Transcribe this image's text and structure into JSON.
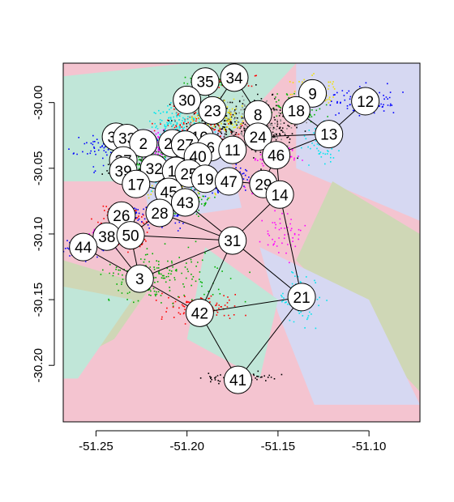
{
  "chart_data": {
    "type": "scatter",
    "title": "",
    "xlabel": "",
    "ylabel": "",
    "xlim": [
      -51.268,
      -51.072
    ],
    "ylim": [
      -30.243,
      -29.97
    ],
    "x_ticks": [
      -51.25,
      -51.2,
      -51.15,
      -51.1
    ],
    "x_tick_labels": [
      "-51.25",
      "-51.20",
      "-51.15",
      "-51.10"
    ],
    "y_ticks": [
      -30.0,
      -30.05,
      -30.1,
      -30.15,
      -30.2
    ],
    "y_tick_labels": [
      "-30.00",
      "-30.05",
      "-30.10",
      "-30.15",
      "-30.20"
    ],
    "grid": false,
    "legend": "none",
    "region_colors": [
      "#f4c4d0",
      "#c0e6d8",
      "#d6d8f2",
      "#cfd7b6"
    ],
    "regions": [
      {
        "color": "#c0e6d8",
        "points": [
          [
            -51.268,
            -29.98
          ],
          [
            -51.2,
            -29.97
          ],
          [
            -51.14,
            -29.97
          ],
          [
            -51.2,
            -30.06
          ],
          [
            -51.268,
            -30.06
          ]
        ]
      },
      {
        "color": "#d6d8f2",
        "points": [
          [
            -51.14,
            -29.97
          ],
          [
            -51.072,
            -29.97
          ],
          [
            -51.072,
            -30.09
          ],
          [
            -51.14,
            -30.05
          ]
        ]
      },
      {
        "color": "#cfd7b6",
        "points": [
          [
            -51.12,
            -30.06
          ],
          [
            -51.072,
            -30.1
          ],
          [
            -51.072,
            -30.22
          ],
          [
            -51.14,
            -30.12
          ]
        ]
      },
      {
        "color": "#d6d8f2",
        "points": [
          [
            -51.16,
            -30.11
          ],
          [
            -51.1,
            -30.15
          ],
          [
            -51.072,
            -30.23
          ],
          [
            -51.13,
            -30.23
          ],
          [
            -51.15,
            -30.16
          ]
        ]
      },
      {
        "color": "#c0e6d8",
        "points": [
          [
            -51.19,
            -30.11
          ],
          [
            -51.15,
            -30.15
          ],
          [
            -51.16,
            -30.21
          ],
          [
            -51.2,
            -30.18
          ]
        ]
      },
      {
        "color": "#cfd7b6",
        "points": [
          [
            -51.268,
            -30.12
          ],
          [
            -51.22,
            -30.14
          ],
          [
            -51.24,
            -30.18
          ],
          [
            -51.268,
            -30.2
          ]
        ]
      },
      {
        "color": "#c0e6d8",
        "points": [
          [
            -51.268,
            -30.14
          ],
          [
            -51.23,
            -30.15
          ],
          [
            -51.26,
            -30.21
          ],
          [
            -51.268,
            -30.21
          ]
        ]
      },
      {
        "color": "#d6d8f2",
        "points": [
          [
            -51.23,
            -30.02
          ],
          [
            -51.18,
            -30.02
          ],
          [
            -51.17,
            -30.08
          ],
          [
            -51.22,
            -30.09
          ]
        ]
      }
    ],
    "nodes": [
      {
        "id": "34",
        "x": -51.174,
        "y": -29.981
      },
      {
        "id": "35",
        "x": -51.19,
        "y": -29.984
      },
      {
        "id": "9",
        "x": -51.131,
        "y": -29.993
      },
      {
        "id": "12",
        "x": -51.102,
        "y": -29.999
      },
      {
        "id": "30",
        "x": -51.2,
        "y": -29.998
      },
      {
        "id": "18",
        "x": -51.14,
        "y": -30.006
      },
      {
        "id": "8",
        "x": -51.161,
        "y": -30.009
      },
      {
        "id": "23",
        "x": -51.186,
        "y": -30.006
      },
      {
        "id": "13",
        "x": -51.122,
        "y": -30.024
      },
      {
        "id": "24",
        "x": -51.161,
        "y": -30.026
      },
      {
        "id": "10",
        "x": -51.193,
        "y": -30.026
      },
      {
        "id": "36",
        "x": -51.239,
        "y": -30.026
      },
      {
        "id": "33",
        "x": -51.233,
        "y": -30.027
      },
      {
        "id": "2",
        "x": -51.224,
        "y": -30.031
      },
      {
        "id": "20",
        "x": -51.208,
        "y": -30.031
      },
      {
        "id": "27",
        "x": -51.201,
        "y": -30.032
      },
      {
        "id": "6",
        "x": -51.187,
        "y": -30.034
      },
      {
        "id": "11",
        "x": -51.175,
        "y": -30.036
      },
      {
        "id": "46",
        "x": -51.151,
        "y": -30.04
      },
      {
        "id": "40",
        "x": -51.194,
        "y": -30.041
      },
      {
        "id": "37",
        "x": -51.235,
        "y": -30.044
      },
      {
        "id": "39",
        "x": -51.235,
        "y": -30.052
      },
      {
        "id": "32",
        "x": -51.218,
        "y": -30.05
      },
      {
        "id": "15",
        "x": -51.206,
        "y": -30.052
      },
      {
        "id": "25",
        "x": -51.199,
        "y": -30.054
      },
      {
        "id": "19",
        "x": -51.19,
        "y": -30.058
      },
      {
        "id": "47",
        "x": -51.177,
        "y": -30.06
      },
      {
        "id": "29",
        "x": -51.158,
        "y": -30.062
      },
      {
        "id": "17",
        "x": -51.228,
        "y": -30.062
      },
      {
        "id": "45",
        "x": -51.21,
        "y": -30.068
      },
      {
        "id": "14",
        "x": -51.149,
        "y": -30.07
      },
      {
        "id": "43",
        "x": -51.201,
        "y": -30.076
      },
      {
        "id": "26",
        "x": -51.236,
        "y": -30.086
      },
      {
        "id": "28",
        "x": -51.215,
        "y": -30.084
      },
      {
        "id": "38",
        "x": -51.244,
        "y": -30.102
      },
      {
        "id": "50",
        "x": -51.231,
        "y": -30.101
      },
      {
        "id": "44",
        "x": -51.257,
        "y": -30.11
      },
      {
        "id": "31",
        "x": -51.175,
        "y": -30.105
      },
      {
        "id": "3",
        "x": -51.226,
        "y": -30.134
      },
      {
        "id": "21",
        "x": -51.137,
        "y": -30.148
      },
      {
        "id": "42",
        "x": -51.193,
        "y": -30.16
      },
      {
        "id": "41",
        "x": -51.172,
        "y": -30.211
      }
    ],
    "edges": [
      [
        "34",
        "8"
      ],
      [
        "34",
        "23"
      ],
      [
        "35",
        "23"
      ],
      [
        "9",
        "18"
      ],
      [
        "12",
        "13"
      ],
      [
        "18",
        "13"
      ],
      [
        "13",
        "24"
      ],
      [
        "8",
        "24"
      ],
      [
        "24",
        "46"
      ],
      [
        "13",
        "46"
      ],
      [
        "46",
        "29"
      ],
      [
        "46",
        "14"
      ],
      [
        "29",
        "14"
      ],
      [
        "47",
        "29"
      ],
      [
        "14",
        "31"
      ],
      [
        "14",
        "21"
      ],
      [
        "31",
        "21"
      ],
      [
        "31",
        "42"
      ],
      [
        "31",
        "3"
      ],
      [
        "31",
        "50"
      ],
      [
        "31",
        "28"
      ],
      [
        "31",
        "43"
      ],
      [
        "3",
        "42"
      ],
      [
        "3",
        "50"
      ],
      [
        "3",
        "38"
      ],
      [
        "3",
        "44"
      ],
      [
        "44",
        "38"
      ],
      [
        "26",
        "38"
      ],
      [
        "26",
        "50"
      ],
      [
        "50",
        "28"
      ],
      [
        "42",
        "21"
      ],
      [
        "42",
        "41"
      ],
      [
        "41",
        "21"
      ],
      [
        "43",
        "28"
      ],
      [
        "43",
        "45"
      ],
      [
        "19",
        "47"
      ],
      [
        "17",
        "45"
      ]
    ],
    "clusters": [
      {
        "color": "#ff0000",
        "x": -51.193,
        "y": -30.023,
        "sx": 0.01,
        "sy": 0.008,
        "n": 220
      },
      {
        "color": "#00e5ee",
        "x": -51.205,
        "y": -30.018,
        "sx": 0.008,
        "sy": 0.008,
        "n": 180
      },
      {
        "color": "#0000ff",
        "x": -51.233,
        "y": -30.031,
        "sx": 0.008,
        "sy": 0.004,
        "n": 160
      },
      {
        "color": "#ff00ff",
        "x": -51.214,
        "y": -30.032,
        "sx": 0.006,
        "sy": 0.006,
        "n": 140
      },
      {
        "color": "#00b000",
        "x": -51.22,
        "y": -30.043,
        "sx": 0.01,
        "sy": 0.006,
        "n": 150
      },
      {
        "color": "#000000",
        "x": -51.175,
        "y": -30.018,
        "sx": 0.014,
        "sy": 0.01,
        "n": 260
      },
      {
        "color": "#888888",
        "x": -51.162,
        "y": -30.015,
        "sx": 0.01,
        "sy": 0.01,
        "n": 180
      },
      {
        "color": "#f0e000",
        "x": -51.183,
        "y": -30.01,
        "sx": 0.008,
        "sy": 0.006,
        "n": 130
      },
      {
        "color": "#f0e000",
        "x": -51.131,
        "y": -29.99,
        "sx": 0.006,
        "sy": 0.005,
        "n": 110
      },
      {
        "color": "#00b000",
        "x": -51.141,
        "y": -30.004,
        "sx": 0.006,
        "sy": 0.005,
        "n": 120
      },
      {
        "color": "#0000ff",
        "x": -51.103,
        "y": -29.998,
        "sx": 0.008,
        "sy": 0.005,
        "n": 120
      },
      {
        "color": "#ff00ff",
        "x": -51.151,
        "y": -30.04,
        "sx": 0.006,
        "sy": 0.004,
        "n": 80
      },
      {
        "color": "#0000ff",
        "x": -51.179,
        "y": -30.058,
        "sx": 0.01,
        "sy": 0.005,
        "n": 120
      },
      {
        "color": "#ff00ff",
        "x": -51.157,
        "y": -30.064,
        "sx": 0.006,
        "sy": 0.004,
        "n": 60
      },
      {
        "color": "#00b000",
        "x": -51.2,
        "y": -30.075,
        "sx": 0.007,
        "sy": 0.004,
        "n": 90
      },
      {
        "color": "#f0e000",
        "x": -51.204,
        "y": -30.066,
        "sx": 0.008,
        "sy": 0.004,
        "n": 80
      },
      {
        "color": "#00e5ee",
        "x": -51.21,
        "y": -30.056,
        "sx": 0.008,
        "sy": 0.005,
        "n": 100
      },
      {
        "color": "#000000",
        "x": -51.232,
        "y": -30.049,
        "sx": 0.006,
        "sy": 0.004,
        "n": 90
      },
      {
        "color": "#ff0000",
        "x": -51.237,
        "y": -30.086,
        "sx": 0.006,
        "sy": 0.004,
        "n": 90
      },
      {
        "color": "#0000ff",
        "x": -51.218,
        "y": -30.085,
        "sx": 0.01,
        "sy": 0.005,
        "n": 100
      },
      {
        "color": "#ff00ff",
        "x": -51.244,
        "y": -30.102,
        "sx": 0.005,
        "sy": 0.004,
        "n": 90
      },
      {
        "color": "#ff0000",
        "x": -51.232,
        "y": -30.101,
        "sx": 0.006,
        "sy": 0.005,
        "n": 110
      },
      {
        "color": "#0000ff",
        "x": -51.257,
        "y": -30.11,
        "sx": 0.006,
        "sy": 0.004,
        "n": 90
      },
      {
        "color": "#00b000",
        "x": -51.225,
        "y": -30.133,
        "sx": 0.01,
        "sy": 0.01,
        "n": 110
      },
      {
        "color": "#ff0000",
        "x": -51.192,
        "y": -30.156,
        "sx": 0.01,
        "sy": 0.005,
        "n": 110
      },
      {
        "color": "#000000",
        "x": -51.171,
        "y": -30.209,
        "sx": 0.01,
        "sy": 0.002,
        "n": 80
      },
      {
        "color": "#00e5ee",
        "x": -51.138,
        "y": -30.148,
        "sx": 0.006,
        "sy": 0.01,
        "n": 60
      },
      {
        "color": "#00e5ee",
        "x": -51.125,
        "y": -30.03,
        "sx": 0.005,
        "sy": 0.008,
        "n": 60
      },
      {
        "color": "#ff00ff",
        "x": -51.146,
        "y": -30.1,
        "sx": 0.006,
        "sy": 0.012,
        "n": 50
      },
      {
        "color": "#00b000",
        "x": -51.2,
        "y": -30.13,
        "sx": 0.014,
        "sy": 0.012,
        "n": 60
      },
      {
        "color": "#0000ff",
        "x": -51.25,
        "y": -30.035,
        "sx": 0.01,
        "sy": 0.008,
        "n": 40
      },
      {
        "color": "#ff0000",
        "x": -51.175,
        "y": -29.982,
        "sx": 0.006,
        "sy": 0.003,
        "n": 40
      },
      {
        "color": "#00b000",
        "x": -51.19,
        "y": -29.984,
        "sx": 0.006,
        "sy": 0.003,
        "n": 60
      },
      {
        "color": "#000000",
        "x": -51.155,
        "y": -30.02,
        "sx": 0.008,
        "sy": 0.012,
        "n": 90
      }
    ]
  }
}
